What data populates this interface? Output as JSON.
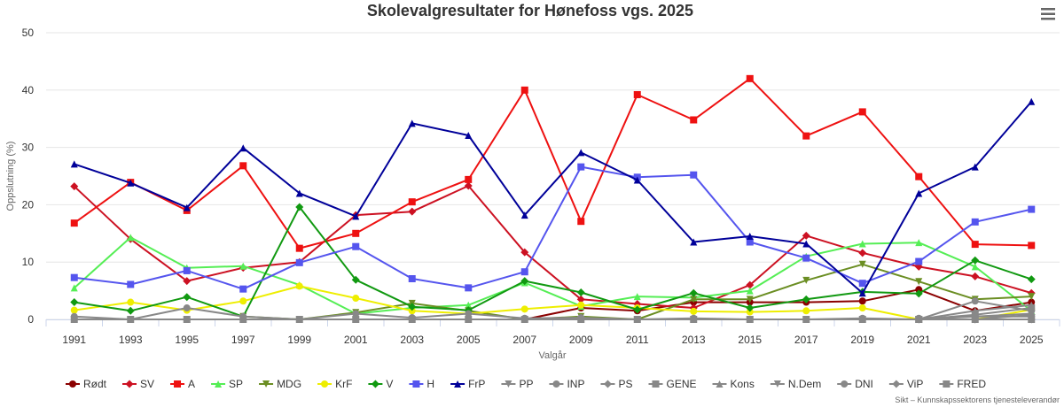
{
  "chart_data": {
    "type": "line",
    "title": "Skolevalgresultater for Hønefoss vgs. 2025",
    "xlabel": "Valgår",
    "ylabel": "Oppslutning (%)",
    "ylim": [
      0,
      50
    ],
    "y_ticks": [
      "0",
      "10",
      "20",
      "30",
      "40",
      "50"
    ],
    "grid": true,
    "legend_position": "bottom",
    "credits": "Sikt – Kunnskapssektorens tjenesteleverandør",
    "categories": [
      "1991",
      "1993",
      "1995",
      "1997",
      "1999",
      "2001",
      "2003",
      "2005",
      "2007",
      "2009",
      "2011",
      "2013",
      "2015",
      "2017",
      "2019",
      "2021",
      "2023",
      "2025"
    ],
    "series": [
      {
        "name": "Rødt",
        "color": "#8b0000",
        "marker": "circle",
        "values": [
          null,
          null,
          null,
          null,
          null,
          null,
          null,
          null,
          0,
          2,
          1.5,
          3,
          3,
          3,
          3.2,
          5.2,
          1.5,
          3
        ]
      },
      {
        "name": "SV",
        "color": "#cc1122",
        "marker": "diamond",
        "values": [
          23.2,
          14,
          6.7,
          9,
          10,
          18.2,
          18.8,
          23.3,
          11.7,
          3.5,
          2.7,
          2,
          6,
          14.6,
          11.6,
          9.2,
          7.5,
          4.6
        ]
      },
      {
        "name": "A",
        "color": "#ee1111",
        "marker": "square",
        "values": [
          16.8,
          23.9,
          19,
          26.8,
          12.4,
          15,
          20.5,
          24.4,
          40,
          17.1,
          39.2,
          34.8,
          42,
          32,
          36.2,
          24.9,
          13.1,
          12.9
        ]
      },
      {
        "name": "SP",
        "color": "#55ee55",
        "marker": "triangle",
        "values": [
          5.5,
          14.3,
          9,
          9.3,
          6,
          1,
          2,
          2.5,
          6.4,
          2.3,
          4,
          3.8,
          5,
          11,
          13.2,
          13.4,
          9.2,
          1.5
        ]
      },
      {
        "name": "MDG",
        "color": "#6b8e23",
        "marker": "triangle-down",
        "values": [
          null,
          null,
          null,
          0.5,
          0,
          1.2,
          2.8,
          1.5,
          0,
          0.5,
          0,
          3.5,
          3.5,
          6.8,
          9.6,
          6.6,
          3.5,
          4
        ]
      },
      {
        "name": "KrF",
        "color": "#eeee00",
        "marker": "circle",
        "values": [
          1.6,
          3,
          1.6,
          3.2,
          5.8,
          3.7,
          1.5,
          1,
          1.8,
          2.5,
          2,
          1.4,
          1.3,
          1.5,
          2,
          0,
          0,
          1.7
        ]
      },
      {
        "name": "V",
        "color": "#119911",
        "marker": "diamond",
        "values": [
          3,
          1.5,
          3.9,
          0.5,
          19.6,
          6.9,
          2.2,
          1.6,
          6.7,
          4.7,
          1.7,
          4.6,
          2,
          3.5,
          4.8,
          4.5,
          10.3,
          7
        ]
      },
      {
        "name": "H",
        "color": "#5555ee",
        "marker": "square",
        "values": [
          7.3,
          6.1,
          8.5,
          5.3,
          9.9,
          12.7,
          7.1,
          5.5,
          8.3,
          26.6,
          24.8,
          25.2,
          13.5,
          10.7,
          6.3,
          10.1,
          17,
          19.2
        ]
      },
      {
        "name": "FrP",
        "color": "#000099",
        "marker": "triangle",
        "values": [
          27.1,
          23.8,
          19.5,
          29.9,
          22,
          18,
          34.2,
          32.1,
          18.2,
          29.1,
          24.3,
          13.5,
          14.5,
          13.2,
          4.6,
          22,
          26.6,
          38
        ]
      },
      {
        "name": "PP",
        "color": "#888888",
        "marker": "triangle-down",
        "values": [
          null,
          null,
          null,
          null,
          null,
          null,
          null,
          null,
          null,
          null,
          null,
          null,
          null,
          null,
          null,
          0,
          0.5,
          1
        ]
      },
      {
        "name": "INP",
        "color": "#888888",
        "marker": "circle",
        "values": [
          null,
          null,
          null,
          null,
          null,
          null,
          null,
          null,
          null,
          null,
          null,
          null,
          null,
          null,
          null,
          0.2,
          0.5,
          0.5
        ]
      },
      {
        "name": "PS",
        "color": "#888888",
        "marker": "diamond",
        "values": [
          null,
          null,
          null,
          null,
          null,
          null,
          null,
          null,
          null,
          null,
          null,
          null,
          null,
          null,
          null,
          0,
          0,
          0.8
        ]
      },
      {
        "name": "GENE",
        "color": "#888888",
        "marker": "square",
        "values": [
          null,
          null,
          null,
          null,
          null,
          null,
          null,
          null,
          null,
          null,
          null,
          null,
          null,
          null,
          null,
          0,
          0.8,
          2
        ]
      },
      {
        "name": "Kons",
        "color": "#888888",
        "marker": "triangle",
        "values": [
          null,
          null,
          null,
          null,
          null,
          null,
          null,
          null,
          null,
          null,
          null,
          null,
          null,
          null,
          null,
          0,
          1.5,
          2.5
        ]
      },
      {
        "name": "N.Dem",
        "color": "#888888",
        "marker": "triangle-down",
        "values": [
          null,
          null,
          null,
          null,
          null,
          null,
          null,
          null,
          null,
          null,
          null,
          null,
          null,
          null,
          null,
          0,
          0,
          0
        ]
      },
      {
        "name": "DNI",
        "color": "#888888",
        "marker": "circle",
        "values": [
          0.5,
          0,
          2,
          0.5,
          0,
          1,
          0.3,
          1,
          0.2,
          0.3,
          0,
          0.2,
          0,
          0,
          0.2,
          0,
          3.2,
          1.5
        ]
      },
      {
        "name": "ViP",
        "color": "#888888",
        "marker": "diamond",
        "values": [
          null,
          null,
          null,
          null,
          null,
          null,
          null,
          null,
          null,
          null,
          null,
          null,
          null,
          null,
          null,
          0,
          0,
          0
        ]
      },
      {
        "name": "FRED",
        "color": "#888888",
        "marker": "square",
        "values": [
          0,
          0,
          0,
          0,
          0,
          0,
          0,
          0,
          0,
          0,
          0,
          0,
          0,
          0,
          0,
          0,
          0,
          0
        ]
      }
    ]
  }
}
